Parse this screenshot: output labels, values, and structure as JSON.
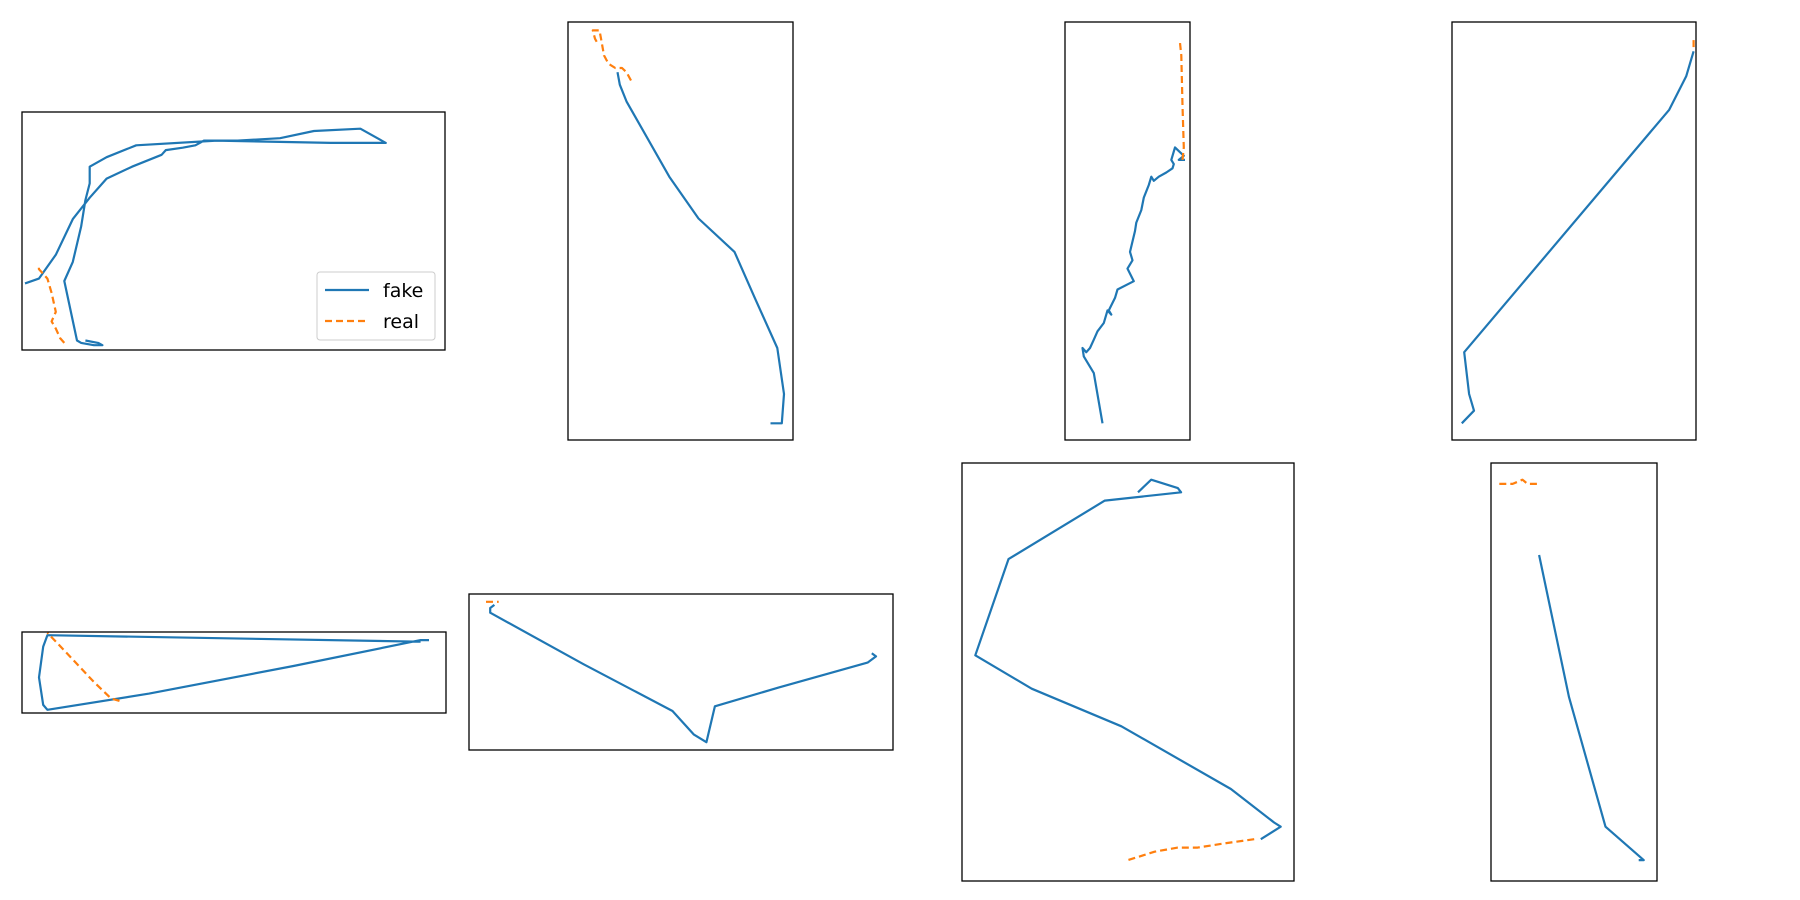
{
  "colors": {
    "fake": "#1f77b4",
    "real": "#ff7f0e",
    "frame": "#000000"
  },
  "legend": {
    "placement": "lower-right",
    "panel": 0,
    "entries": [
      {
        "label": "fake",
        "style": "solid"
      },
      {
        "label": "real",
        "style": "dashed"
      }
    ]
  },
  "chart_data": [
    {
      "type": "line",
      "axes_visible": false,
      "xlim": [
        0,
        100
      ],
      "ylim": [
        0,
        100
      ],
      "series": [
        {
          "name": "fake",
          "style": "solid",
          "x": [
            15,
            18,
            19,
            17,
            14,
            13,
            10,
            12,
            14,
            15,
            16,
            16,
            20,
            27,
            46,
            73,
            86,
            80,
            69,
            61,
            51,
            43,
            41,
            38,
            34,
            33,
            26,
            20,
            16,
            12,
            8,
            4,
            0.7
          ],
          "y": [
            4,
            3,
            2,
            2,
            3,
            4,
            29,
            37,
            52,
            63,
            70,
            77,
            81,
            86,
            88,
            87,
            87,
            93,
            92,
            89,
            88,
            88,
            86,
            85,
            84,
            82,
            77,
            72,
            64,
            55,
            40,
            30,
            28
          ]
        },
        {
          "name": "real",
          "style": "dashed",
          "x": [
            10,
            9,
            8,
            7,
            8,
            7,
            6,
            4,
            4
          ],
          "y": [
            3,
            5,
            9,
            12,
            16,
            24,
            30,
            34,
            36
          ]
        }
      ]
    },
    {
      "type": "line",
      "axes_visible": false,
      "xlim": [
        0,
        100
      ],
      "ylim": [
        0,
        100
      ],
      "series": [
        {
          "name": "fake",
          "style": "solid",
          "x": [
            90,
            95,
            96,
            93,
            83,
            74,
            58,
            45,
            26,
            23,
            22
          ],
          "y": [
            4,
            4,
            11,
            22,
            34,
            45,
            53,
            63,
            81,
            85,
            88
          ]
        },
        {
          "name": "real",
          "style": "dashed",
          "x": [
            28,
            26,
            24,
            21,
            18,
            16,
            15,
            14,
            11,
            12,
            13
          ],
          "y": [
            86,
            88,
            89,
            89,
            90,
            92,
            95,
            98,
            98,
            96,
            95
          ]
        }
      ]
    },
    {
      "type": "line",
      "axes_visible": false,
      "xlim": [
        0,
        100
      ],
      "ylim": [
        0,
        100
      ],
      "series": [
        {
          "name": "fake",
          "style": "solid",
          "x": [
            30,
            23,
            15,
            14,
            17,
            20,
            23,
            26,
            31,
            34,
            37,
            35,
            40,
            42,
            55,
            50,
            54,
            52,
            56,
            57,
            61,
            63,
            67,
            69,
            71,
            75,
            81,
            86,
            87,
            85,
            88,
            95,
            91,
            96
          ],
          "y": [
            4,
            16,
            20,
            22,
            21,
            22,
            24,
            26,
            28,
            31,
            30,
            31,
            34,
            36,
            38,
            41,
            43,
            45,
            50,
            52,
            55,
            58,
            61,
            63,
            62,
            63,
            64,
            65,
            66,
            67,
            70,
            68,
            67,
            67
          ]
        },
        {
          "name": "real",
          "style": "dashed",
          "x": [
            94,
            95,
            94,
            93,
            92
          ],
          "y": [
            67,
            70,
            80,
            92,
            95
          ]
        }
      ]
    },
    {
      "type": "line",
      "axes_visible": false,
      "xlim": [
        0,
        100
      ],
      "ylim": [
        0,
        100
      ],
      "series": [
        {
          "name": "fake",
          "style": "solid",
          "x": [
            4,
            9,
            7,
            5,
            89,
            96,
            99
          ],
          "y": [
            4,
            7,
            11,
            21,
            79,
            87,
            93
          ]
        },
        {
          "name": "real",
          "style": "dashed",
          "x": [
            99,
            99
          ],
          "y": [
            94,
            96
          ]
        }
      ]
    },
    {
      "type": "line",
      "axes_visible": false,
      "xlim": [
        0,
        100
      ],
      "ylim": [
        0,
        100
      ],
      "series": [
        {
          "name": "fake",
          "style": "solid",
          "x": [
            96,
            94,
            64,
            30,
            6,
            5,
            4,
            5,
            6,
            94
          ],
          "y": [
            90,
            90,
            58,
            24,
            4,
            10,
            44,
            82,
            96,
            88
          ]
        },
        {
          "name": "real",
          "style": "dashed",
          "x": [
            23,
            21,
            17,
            10,
            6
          ],
          "y": [
            15,
            18,
            38,
            77,
            99
          ]
        }
      ]
    },
    {
      "type": "line",
      "axes_visible": false,
      "xlim": [
        0,
        100
      ],
      "ylim": [
        0,
        100
      ],
      "series": [
        {
          "name": "fake",
          "style": "solid",
          "x": [
            95,
            96,
            94,
            73,
            58,
            56,
            53,
            48,
            27,
            5,
            5,
            6
          ],
          "y": [
            62,
            60,
            56,
            40,
            28,
            5,
            10,
            25,
            55,
            88,
            91,
            93
          ]
        },
        {
          "name": "real",
          "style": "dashed",
          "x": [
            4,
            7
          ],
          "y": [
            95,
            95
          ]
        }
      ]
    },
    {
      "type": "line",
      "axes_visible": false,
      "xlim": [
        0,
        100
      ],
      "ylim": [
        0,
        100
      ],
      "series": [
        {
          "name": "fake",
          "style": "solid",
          "x": [
            90,
            96,
            94,
            81,
            48,
            21,
            4,
            14,
            43,
            66,
            65,
            57,
            53
          ],
          "y": [
            10,
            13,
            14,
            22,
            37,
            46,
            54,
            77,
            91,
            93,
            94,
            96,
            93
          ]
        },
        {
          "name": "real",
          "style": "dashed",
          "x": [
            88,
            79,
            71,
            65,
            58,
            54,
            50,
            49
          ],
          "y": [
            10,
            9,
            8,
            8,
            7,
            6,
            5,
            5
          ]
        }
      ]
    },
    {
      "type": "line",
      "axes_visible": false,
      "xlim": [
        0,
        100
      ],
      "ylim": [
        0,
        100
      ],
      "series": [
        {
          "name": "fake",
          "style": "solid",
          "x": [
            29,
            47,
            69,
            92,
            89
          ],
          "y": [
            78,
            44,
            13,
            5,
            5
          ]
        },
        {
          "name": "real",
          "style": "dashed",
          "x": [
            5,
            13,
            19,
            22,
            30
          ],
          "y": [
            95,
            95,
            96,
            95,
            95
          ]
        }
      ]
    }
  ]
}
